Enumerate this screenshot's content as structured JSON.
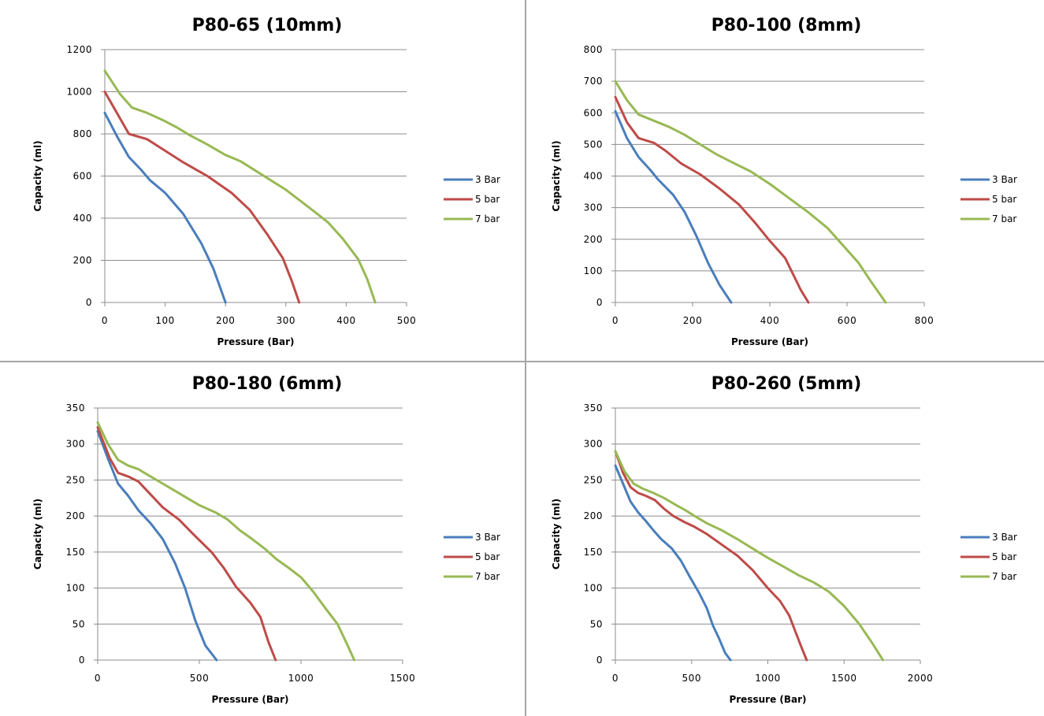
{
  "chart_data": [
    {
      "type": "line",
      "title": "P80-65 (10mm)",
      "xlabel": "Pressure (Bar)",
      "ylabel": "Capacity (ml)",
      "xlim": [
        0,
        500
      ],
      "ylim": [
        0,
        1200
      ],
      "xticks": [
        "0",
        "100",
        "200",
        "300",
        "400",
        "500"
      ],
      "yticks": [
        "0",
        "200",
        "400",
        "600",
        "800",
        "1000",
        "1200"
      ],
      "grid": true,
      "legend_position": "right",
      "series": [
        {
          "name": "3 Bar",
          "color": "#4a7ebb",
          "points": [
            [
              0,
              900
            ],
            [
              20,
              790
            ],
            [
              40,
              690
            ],
            [
              60,
              630
            ],
            [
              75,
              580
            ],
            [
              100,
              520
            ],
            [
              130,
              420
            ],
            [
              160,
              280
            ],
            [
              180,
              160
            ],
            [
              200,
              0
            ]
          ]
        },
        {
          "name": "5 bar",
          "color": "#be4b48",
          "points": [
            [
              0,
              1000
            ],
            [
              20,
              900
            ],
            [
              40,
              800
            ],
            [
              70,
              775
            ],
            [
              100,
              720
            ],
            [
              130,
              665
            ],
            [
              170,
              600
            ],
            [
              210,
              520
            ],
            [
              240,
              440
            ],
            [
              270,
              320
            ],
            [
              295,
              210
            ],
            [
              310,
              100
            ],
            [
              322,
              0
            ]
          ]
        },
        {
          "name": "7 bar",
          "color": "#98b954",
          "points": [
            [
              0,
              1100
            ],
            [
              25,
              990
            ],
            [
              45,
              925
            ],
            [
              70,
              900
            ],
            [
              100,
              860
            ],
            [
              120,
              830
            ],
            [
              140,
              795
            ],
            [
              170,
              750
            ],
            [
              200,
              700
            ],
            [
              225,
              670
            ],
            [
              250,
              625
            ],
            [
              275,
              580
            ],
            [
              300,
              535
            ],
            [
              325,
              480
            ],
            [
              350,
              425
            ],
            [
              370,
              380
            ],
            [
              395,
              300
            ],
            [
              420,
              205
            ],
            [
              435,
              110
            ],
            [
              448,
              0
            ]
          ]
        }
      ]
    },
    {
      "type": "line",
      "title": "P80-100 (8mm)",
      "xlabel": "Pressure (Bar)",
      "ylabel": "Capacity (ml)",
      "xlim": [
        0,
        800
      ],
      "ylim": [
        0,
        800
      ],
      "xticks": [
        "0",
        "200",
        "400",
        "600",
        "800"
      ],
      "yticks": [
        "0",
        "100",
        "200",
        "300",
        "400",
        "500",
        "600",
        "700",
        "800"
      ],
      "grid": true,
      "legend_position": "right",
      "series": [
        {
          "name": "3 Bar",
          "color": "#4a7ebb",
          "points": [
            [
              0,
              605
            ],
            [
              30,
              520
            ],
            [
              60,
              460
            ],
            [
              90,
              420
            ],
            [
              110,
              390
            ],
            [
              150,
              340
            ],
            [
              180,
              285
            ],
            [
              210,
              210
            ],
            [
              240,
              125
            ],
            [
              270,
              55
            ],
            [
              300,
              0
            ]
          ]
        },
        {
          "name": "5 bar",
          "color": "#be4b48",
          "points": [
            [
              0,
              650
            ],
            [
              30,
              570
            ],
            [
              60,
              520
            ],
            [
              100,
              505
            ],
            [
              130,
              480
            ],
            [
              170,
              440
            ],
            [
              220,
              405
            ],
            [
              270,
              360
            ],
            [
              320,
              310
            ],
            [
              360,
              255
            ],
            [
              400,
              195
            ],
            [
              440,
              140
            ],
            [
              460,
              90
            ],
            [
              480,
              40
            ],
            [
              500,
              0
            ]
          ]
        },
        {
          "name": "7 bar",
          "color": "#98b954",
          "points": [
            [
              0,
              700
            ],
            [
              30,
              640
            ],
            [
              60,
              595
            ],
            [
              100,
              575
            ],
            [
              140,
              555
            ],
            [
              180,
              530
            ],
            [
              220,
              500
            ],
            [
              260,
              470
            ],
            [
              300,
              445
            ],
            [
              350,
              415
            ],
            [
              400,
              375
            ],
            [
              450,
              330
            ],
            [
              500,
              285
            ],
            [
              550,
              235
            ],
            [
              590,
              180
            ],
            [
              630,
              125
            ],
            [
              660,
              70
            ],
            [
              700,
              0
            ]
          ]
        }
      ]
    },
    {
      "type": "line",
      "title": "P80-180 (6mm)",
      "xlabel": "Pressure (Bar)",
      "ylabel": "Capacity (ml)",
      "xlim": [
        0,
        1500
      ],
      "ylim": [
        0,
        350
      ],
      "xticks": [
        "0",
        "500",
        "1000",
        "1500"
      ],
      "yticks": [
        "0",
        "50",
        "100",
        "150",
        "200",
        "250",
        "300",
        "350"
      ],
      "grid": true,
      "legend_position": "right",
      "series": [
        {
          "name": "3 Bar",
          "color": "#4a7ebb",
          "points": [
            [
              0,
              318
            ],
            [
              50,
              280
            ],
            [
              100,
              245
            ],
            [
              150,
              228
            ],
            [
              200,
              208
            ],
            [
              260,
              190
            ],
            [
              320,
              168
            ],
            [
              380,
              135
            ],
            [
              430,
              100
            ],
            [
              480,
              55
            ],
            [
              530,
              20
            ],
            [
              585,
              0
            ]
          ]
        },
        {
          "name": "5 bar",
          "color": "#be4b48",
          "points": [
            [
              0,
              323
            ],
            [
              60,
              280
            ],
            [
              100,
              260
            ],
            [
              150,
              255
            ],
            [
              200,
              248
            ],
            [
              260,
              230
            ],
            [
              320,
              212
            ],
            [
              400,
              195
            ],
            [
              480,
              172
            ],
            [
              560,
              150
            ],
            [
              620,
              128
            ],
            [
              680,
              102
            ],
            [
              750,
              80
            ],
            [
              800,
              60
            ],
            [
              840,
              25
            ],
            [
              875,
              0
            ]
          ]
        },
        {
          "name": "7 bar",
          "color": "#98b954",
          "points": [
            [
              0,
              330
            ],
            [
              50,
              300
            ],
            [
              100,
              278
            ],
            [
              150,
              270
            ],
            [
              200,
              265
            ],
            [
              260,
              255
            ],
            [
              320,
              245
            ],
            [
              380,
              235
            ],
            [
              440,
              225
            ],
            [
              500,
              215
            ],
            [
              580,
              205
            ],
            [
              640,
              195
            ],
            [
              700,
              180
            ],
            [
              760,
              168
            ],
            [
              820,
              155
            ],
            [
              880,
              140
            ],
            [
              940,
              128
            ],
            [
              1000,
              115
            ],
            [
              1060,
              95
            ],
            [
              1120,
              72
            ],
            [
              1180,
              50
            ],
            [
              1230,
              20
            ],
            [
              1262,
              0
            ]
          ]
        }
      ]
    },
    {
      "type": "line",
      "title": "P80-260 (5mm)",
      "xlabel": "Pressure (Bar)",
      "ylabel": "Capacity (ml)",
      "xlim": [
        0,
        2000
      ],
      "ylim": [
        0,
        350
      ],
      "xticks": [
        "0",
        "500",
        "1000",
        "1500",
        "2000"
      ],
      "yticks": [
        "0",
        "50",
        "100",
        "150",
        "200",
        "250",
        "300",
        "350"
      ],
      "grid": true,
      "legend_position": "right",
      "series": [
        {
          "name": "3 Bar",
          "color": "#4a7ebb",
          "points": [
            [
              0,
              270
            ],
            [
              50,
              245
            ],
            [
              100,
              220
            ],
            [
              150,
              205
            ],
            [
              200,
              193
            ],
            [
              250,
              180
            ],
            [
              300,
              168
            ],
            [
              370,
              155
            ],
            [
              430,
              138
            ],
            [
              490,
              115
            ],
            [
              550,
              93
            ],
            [
              600,
              72
            ],
            [
              640,
              48
            ],
            [
              680,
              30
            ],
            [
              720,
              10
            ],
            [
              755,
              0
            ]
          ]
        },
        {
          "name": "5 bar",
          "color": "#be4b48",
          "points": [
            [
              0,
              290
            ],
            [
              50,
              260
            ],
            [
              100,
              240
            ],
            [
              150,
              232
            ],
            [
              200,
              228
            ],
            [
              260,
              222
            ],
            [
              320,
              210
            ],
            [
              380,
              200
            ],
            [
              450,
              192
            ],
            [
              520,
              185
            ],
            [
              600,
              175
            ],
            [
              700,
              160
            ],
            [
              800,
              145
            ],
            [
              900,
              125
            ],
            [
              1000,
              100
            ],
            [
              1080,
              82
            ],
            [
              1140,
              62
            ],
            [
              1180,
              40
            ],
            [
              1220,
              18
            ],
            [
              1255,
              0
            ]
          ]
        },
        {
          "name": "7 bar",
          "color": "#98b954",
          "points": [
            [
              0,
              290
            ],
            [
              60,
              262
            ],
            [
              120,
              245
            ],
            [
              180,
              238
            ],
            [
              250,
              232
            ],
            [
              320,
              225
            ],
            [
              400,
              215
            ],
            [
              460,
              208
            ],
            [
              520,
              200
            ],
            [
              600,
              190
            ],
            [
              700,
              180
            ],
            [
              800,
              168
            ],
            [
              900,
              155
            ],
            [
              1000,
              142
            ],
            [
              1100,
              130
            ],
            [
              1200,
              118
            ],
            [
              1300,
              108
            ],
            [
              1400,
              95
            ],
            [
              1500,
              75
            ],
            [
              1600,
              50
            ],
            [
              1680,
              25
            ],
            [
              1755,
              0
            ]
          ]
        }
      ]
    }
  ]
}
